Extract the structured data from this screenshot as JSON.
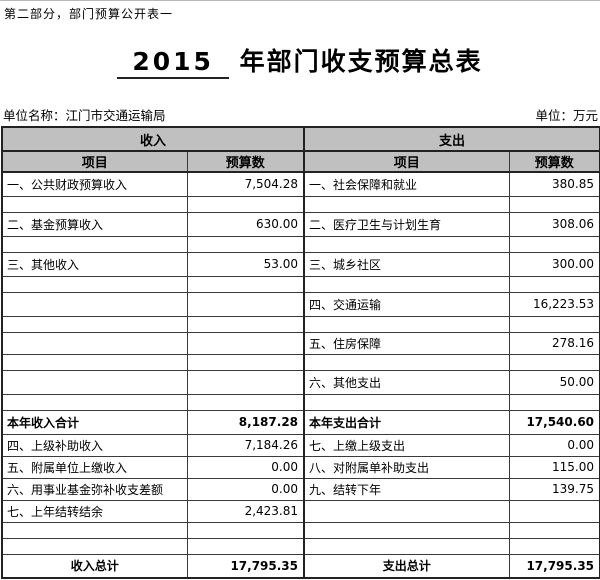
{
  "page": {
    "top_note": "第二部分，部门预算公开表一",
    "title_year": "2015",
    "title_rest": " 年部门收支预算总表",
    "unit_name": "单位名称：江门市交通运输局",
    "unit_label": "单位：万元"
  },
  "colors": {
    "header_bg": "#c0c0c0",
    "border": "#333333",
    "text": "#000000"
  },
  "table": {
    "income_header": "收入",
    "expense_header": "支出",
    "item_col": "项目",
    "budget_col": "预算数",
    "rows": [
      {
        "li": "一、公共财政预算收入",
        "lv": "7,504.28",
        "ri": "一、社会保障和就业",
        "rv": "380.85"
      },
      {
        "li": "",
        "lv": "",
        "ri": "",
        "rv": ""
      },
      {
        "li": "二、基金预算收入",
        "lv": "630.00",
        "ri": "二、医疗卫生与计划生育",
        "rv": "308.06"
      },
      {
        "li": "",
        "lv": "",
        "ri": "",
        "rv": ""
      },
      {
        "li": "三、其他收入",
        "lv": "53.00",
        "ri": "三、城乡社区",
        "rv": "300.00"
      },
      {
        "li": "",
        "lv": "",
        "ri": "",
        "rv": ""
      },
      {
        "li": "",
        "lv": "",
        "ri": "四、交通运输",
        "rv": "16,223.53"
      },
      {
        "li": "",
        "lv": "",
        "ri": "",
        "rv": ""
      },
      {
        "li": "",
        "lv": "",
        "ri": "五、住房保障",
        "rv": "278.16"
      },
      {
        "li": "",
        "lv": "",
        "ri": "",
        "rv": ""
      },
      {
        "li": "",
        "lv": "",
        "ri": "六、其他支出",
        "rv": "50.00"
      },
      {
        "li": "",
        "lv": "",
        "ri": "",
        "rv": ""
      },
      {
        "li": "本年收入合计",
        "lv": "8,187.28",
        "ri": "本年支出合计",
        "rv": "17,540.60"
      },
      {
        "li": "四、上级补助收入",
        "lv": "7,184.26",
        "ri": "七、上缴上级支出",
        "rv": "0.00"
      },
      {
        "li": "五、附属单位上缴收入",
        "lv": "0.00",
        "ri": "八、对附属单补助支出",
        "rv": "115.00"
      },
      {
        "li": "六、用事业基金弥补收支差额",
        "lv": "0.00",
        "ri": "九、结转下年",
        "rv": "139.75"
      },
      {
        "li": "七、上年结转结余",
        "lv": "2,423.81",
        "ri": "",
        "rv": ""
      },
      {
        "li": "",
        "lv": "",
        "ri": "",
        "rv": ""
      },
      {
        "li": "",
        "lv": "",
        "ri": "",
        "rv": ""
      },
      {
        "li": "收入总计",
        "lv": "17,795.35",
        "ri": "支出总计",
        "rv": "17,795.35"
      }
    ]
  }
}
